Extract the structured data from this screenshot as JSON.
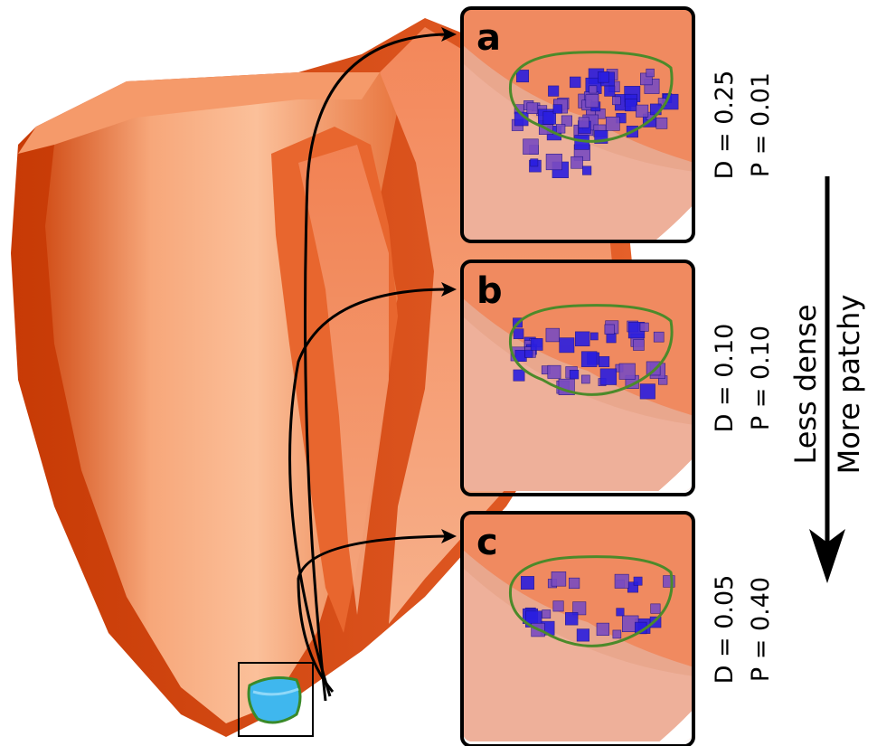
{
  "panels": [
    {
      "label": "a",
      "d_text": "D = 0.25",
      "p_text": "P = 0.01"
    },
    {
      "label": "b",
      "d_text": "D = 0.10",
      "p_text": "P = 0.10"
    },
    {
      "label": "c",
      "d_text": "D = 0.05",
      "p_text": "P = 0.40"
    }
  ],
  "trend": {
    "line1": "Less dense",
    "line2": "More patchy"
  }
}
